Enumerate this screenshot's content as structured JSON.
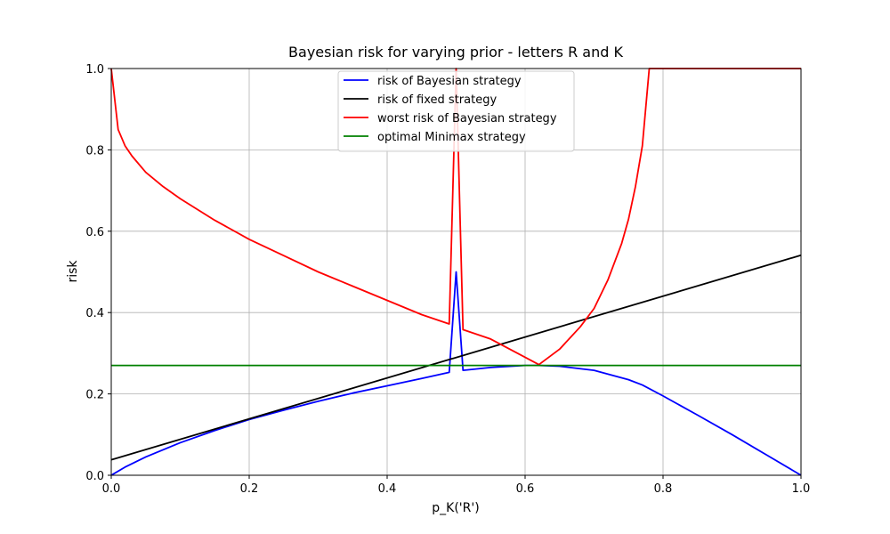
{
  "chart_data": {
    "type": "line",
    "title": "Bayesian risk for varying prior - letters R and K",
    "xlabel": "p_K('R')",
    "ylabel": "risk",
    "xlim": [
      0.0,
      1.0
    ],
    "ylim": [
      0.0,
      1.0
    ],
    "xticks": [
      "0.0",
      "0.2",
      "0.4",
      "0.6",
      "0.8",
      "1.0"
    ],
    "yticks": [
      "0.0",
      "0.2",
      "0.4",
      "0.6",
      "0.8",
      "1.0"
    ],
    "grid": true,
    "legend_position": "top-center",
    "series": [
      {
        "name": "risk of Bayesian strategy",
        "color": "#0000ff",
        "points": [
          [
            0.0,
            0.0
          ],
          [
            0.02,
            0.02
          ],
          [
            0.05,
            0.045
          ],
          [
            0.1,
            0.08
          ],
          [
            0.15,
            0.11
          ],
          [
            0.2,
            0.137
          ],
          [
            0.25,
            0.16
          ],
          [
            0.3,
            0.182
          ],
          [
            0.35,
            0.202
          ],
          [
            0.4,
            0.22
          ],
          [
            0.45,
            0.238
          ],
          [
            0.49,
            0.253
          ],
          [
            0.5,
            0.5
          ],
          [
            0.51,
            0.258
          ],
          [
            0.55,
            0.265
          ],
          [
            0.6,
            0.27
          ],
          [
            0.62,
            0.27
          ],
          [
            0.65,
            0.268
          ],
          [
            0.7,
            0.258
          ],
          [
            0.75,
            0.235
          ],
          [
            0.77,
            0.222
          ],
          [
            0.8,
            0.195
          ],
          [
            0.85,
            0.148
          ],
          [
            0.9,
            0.1
          ],
          [
            0.95,
            0.05
          ],
          [
            1.0,
            0.0
          ]
        ]
      },
      {
        "name": "risk of fixed strategy",
        "color": "#000000",
        "points": [
          [
            0.0,
            0.038
          ],
          [
            1.0,
            0.541
          ]
        ]
      },
      {
        "name": "worst risk of Bayesian strategy",
        "color": "#ff0000",
        "points": [
          [
            0.0,
            1.0
          ],
          [
            0.01,
            0.85
          ],
          [
            0.02,
            0.81
          ],
          [
            0.03,
            0.785
          ],
          [
            0.05,
            0.745
          ],
          [
            0.075,
            0.71
          ],
          [
            0.1,
            0.68
          ],
          [
            0.15,
            0.627
          ],
          [
            0.2,
            0.58
          ],
          [
            0.25,
            0.54
          ],
          [
            0.3,
            0.5
          ],
          [
            0.35,
            0.465
          ],
          [
            0.4,
            0.43
          ],
          [
            0.45,
            0.395
          ],
          [
            0.49,
            0.372
          ],
          [
            0.5,
            1.0
          ],
          [
            0.51,
            0.358
          ],
          [
            0.55,
            0.335
          ],
          [
            0.6,
            0.29
          ],
          [
            0.62,
            0.272
          ],
          [
            0.65,
            0.31
          ],
          [
            0.68,
            0.365
          ],
          [
            0.7,
            0.41
          ],
          [
            0.72,
            0.48
          ],
          [
            0.74,
            0.57
          ],
          [
            0.75,
            0.63
          ],
          [
            0.76,
            0.71
          ],
          [
            0.77,
            0.81
          ],
          [
            0.78,
            1.0
          ],
          [
            0.8,
            1.0
          ],
          [
            0.9,
            1.0
          ],
          [
            1.0,
            1.0
          ]
        ]
      },
      {
        "name": "optimal Minimax strategy",
        "color": "#008000",
        "points": [
          [
            0.0,
            0.27
          ],
          [
            1.0,
            0.27
          ]
        ]
      }
    ]
  }
}
